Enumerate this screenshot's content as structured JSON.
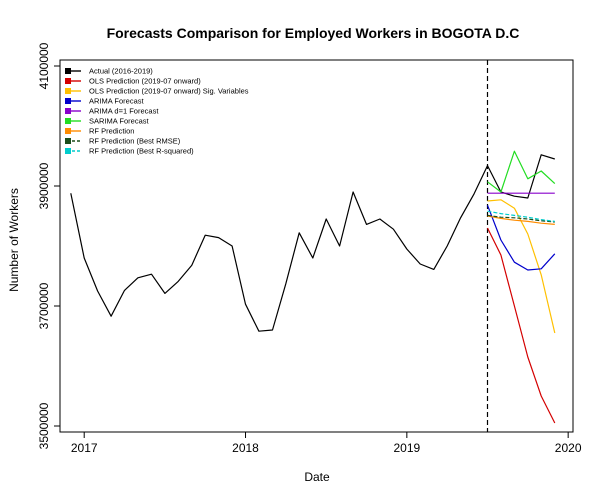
{
  "chart_data": {
    "type": "line",
    "title": "Forecasts Comparison for Employed Workers in BOGOTA D.C",
    "xlabel": "Date",
    "ylabel": "Number of Workers",
    "xlim": [
      2016.85,
      2020.03
    ],
    "ylim": [
      3490000,
      4110000
    ],
    "x_ticks": [
      {
        "value": 2017,
        "label": "2017"
      },
      {
        "value": 2018,
        "label": "2018"
      },
      {
        "value": 2019,
        "label": "2019"
      },
      {
        "value": 2020,
        "label": "2020"
      }
    ],
    "y_ticks": [
      {
        "value": 3500000,
        "label": "3500000"
      },
      {
        "value": 3700000,
        "label": "3700000"
      },
      {
        "value": 3900000,
        "label": "3900000"
      },
      {
        "value": 4100000,
        "label": "4100000"
      }
    ],
    "forecast_start_line": {
      "x": 2019.5,
      "style": "dashed"
    },
    "grid": false,
    "legend_position": "top-left",
    "series": [
      {
        "name": "Actual (2016-2019)",
        "color": "#000000",
        "dashed": false,
        "x": [
          2016.917,
          2017.0,
          2017.083,
          2017.167,
          2017.25,
          2017.333,
          2017.417,
          2017.5,
          2017.583,
          2017.667,
          2017.75,
          2017.833,
          2017.917,
          2018.0,
          2018.083,
          2018.167,
          2018.25,
          2018.333,
          2018.417,
          2018.5,
          2018.583,
          2018.667,
          2018.75,
          2018.833,
          2018.917,
          2019.0,
          2019.083,
          2019.167,
          2019.25,
          2019.333,
          2019.417,
          2019.5,
          2019.583,
          2019.667,
          2019.75,
          2019.833,
          2019.917
        ],
        "values": [
          3888000,
          3780000,
          3725000,
          3683000,
          3726000,
          3747000,
          3753000,
          3721000,
          3741000,
          3768000,
          3818000,
          3814000,
          3800000,
          3703000,
          3658000,
          3660000,
          3737000,
          3822000,
          3780000,
          3845000,
          3800000,
          3890000,
          3836000,
          3845000,
          3828000,
          3795000,
          3770000,
          3761000,
          3800000,
          3847000,
          3887000,
          3934000,
          3890000,
          3883000,
          3880000,
          3952000,
          3945000
        ]
      },
      {
        "name": "OLS Prediction (2019-07 onward)",
        "color": "#d40000",
        "dashed": false,
        "x": [
          2019.5,
          2019.583,
          2019.667,
          2019.75,
          2019.833,
          2019.917
        ],
        "values": [
          3830000,
          3785000,
          3700000,
          3615000,
          3550000,
          3505000
        ]
      },
      {
        "name": "OLS Prediction (2019-07 onward) Sig. Variables",
        "color": "#ffc000",
        "dashed": false,
        "x": [
          2019.5,
          2019.583,
          2019.667,
          2019.75,
          2019.833,
          2019.917
        ],
        "values": [
          3875000,
          3877000,
          3863000,
          3820000,
          3752000,
          3655000
        ]
      },
      {
        "name": "ARIMA Forecast",
        "color": "#0000cc",
        "dashed": false,
        "x": [
          2019.5,
          2019.583,
          2019.667,
          2019.75,
          2019.833,
          2019.917
        ],
        "values": [
          3868000,
          3810000,
          3773000,
          3760000,
          3762000,
          3787000
        ]
      },
      {
        "name": "ARIMA d=1 Forecast",
        "color": "#8800cc",
        "dashed": false,
        "x": [
          2019.5,
          2019.583,
          2019.667,
          2019.75,
          2019.833,
          2019.917
        ],
        "values": [
          3888000,
          3888000,
          3888000,
          3888000,
          3888000,
          3888000
        ]
      },
      {
        "name": "SARIMA Forecast",
        "color": "#22dd22",
        "dashed": false,
        "x": [
          2019.5,
          2019.583,
          2019.667,
          2019.75,
          2019.833,
          2019.917
        ],
        "values": [
          3907000,
          3890000,
          3958000,
          3912000,
          3925000,
          3904000
        ]
      },
      {
        "name": "RF Prediction",
        "color": "#ff8c00",
        "dashed": false,
        "x": [
          2019.5,
          2019.583,
          2019.667,
          2019.75,
          2019.833,
          2019.917
        ],
        "values": [
          3850000,
          3846000,
          3843000,
          3841000,
          3838000,
          3836000
        ]
      },
      {
        "name": "RF Prediction (Best RMSE)",
        "color": "#1a4d1a",
        "dashed": true,
        "x": [
          2019.5,
          2019.583,
          2019.667,
          2019.75,
          2019.833,
          2019.917
        ],
        "values": [
          3851000,
          3848000,
          3847000,
          3845000,
          3842000,
          3840000
        ]
      },
      {
        "name": "RF Prediction (Best R-squared)",
        "color": "#00cccc",
        "dashed": true,
        "x": [
          2019.5,
          2019.583,
          2019.667,
          2019.75,
          2019.833,
          2019.917
        ],
        "values": [
          3858000,
          3854000,
          3851000,
          3848000,
          3844000,
          3841000
        ]
      }
    ]
  }
}
